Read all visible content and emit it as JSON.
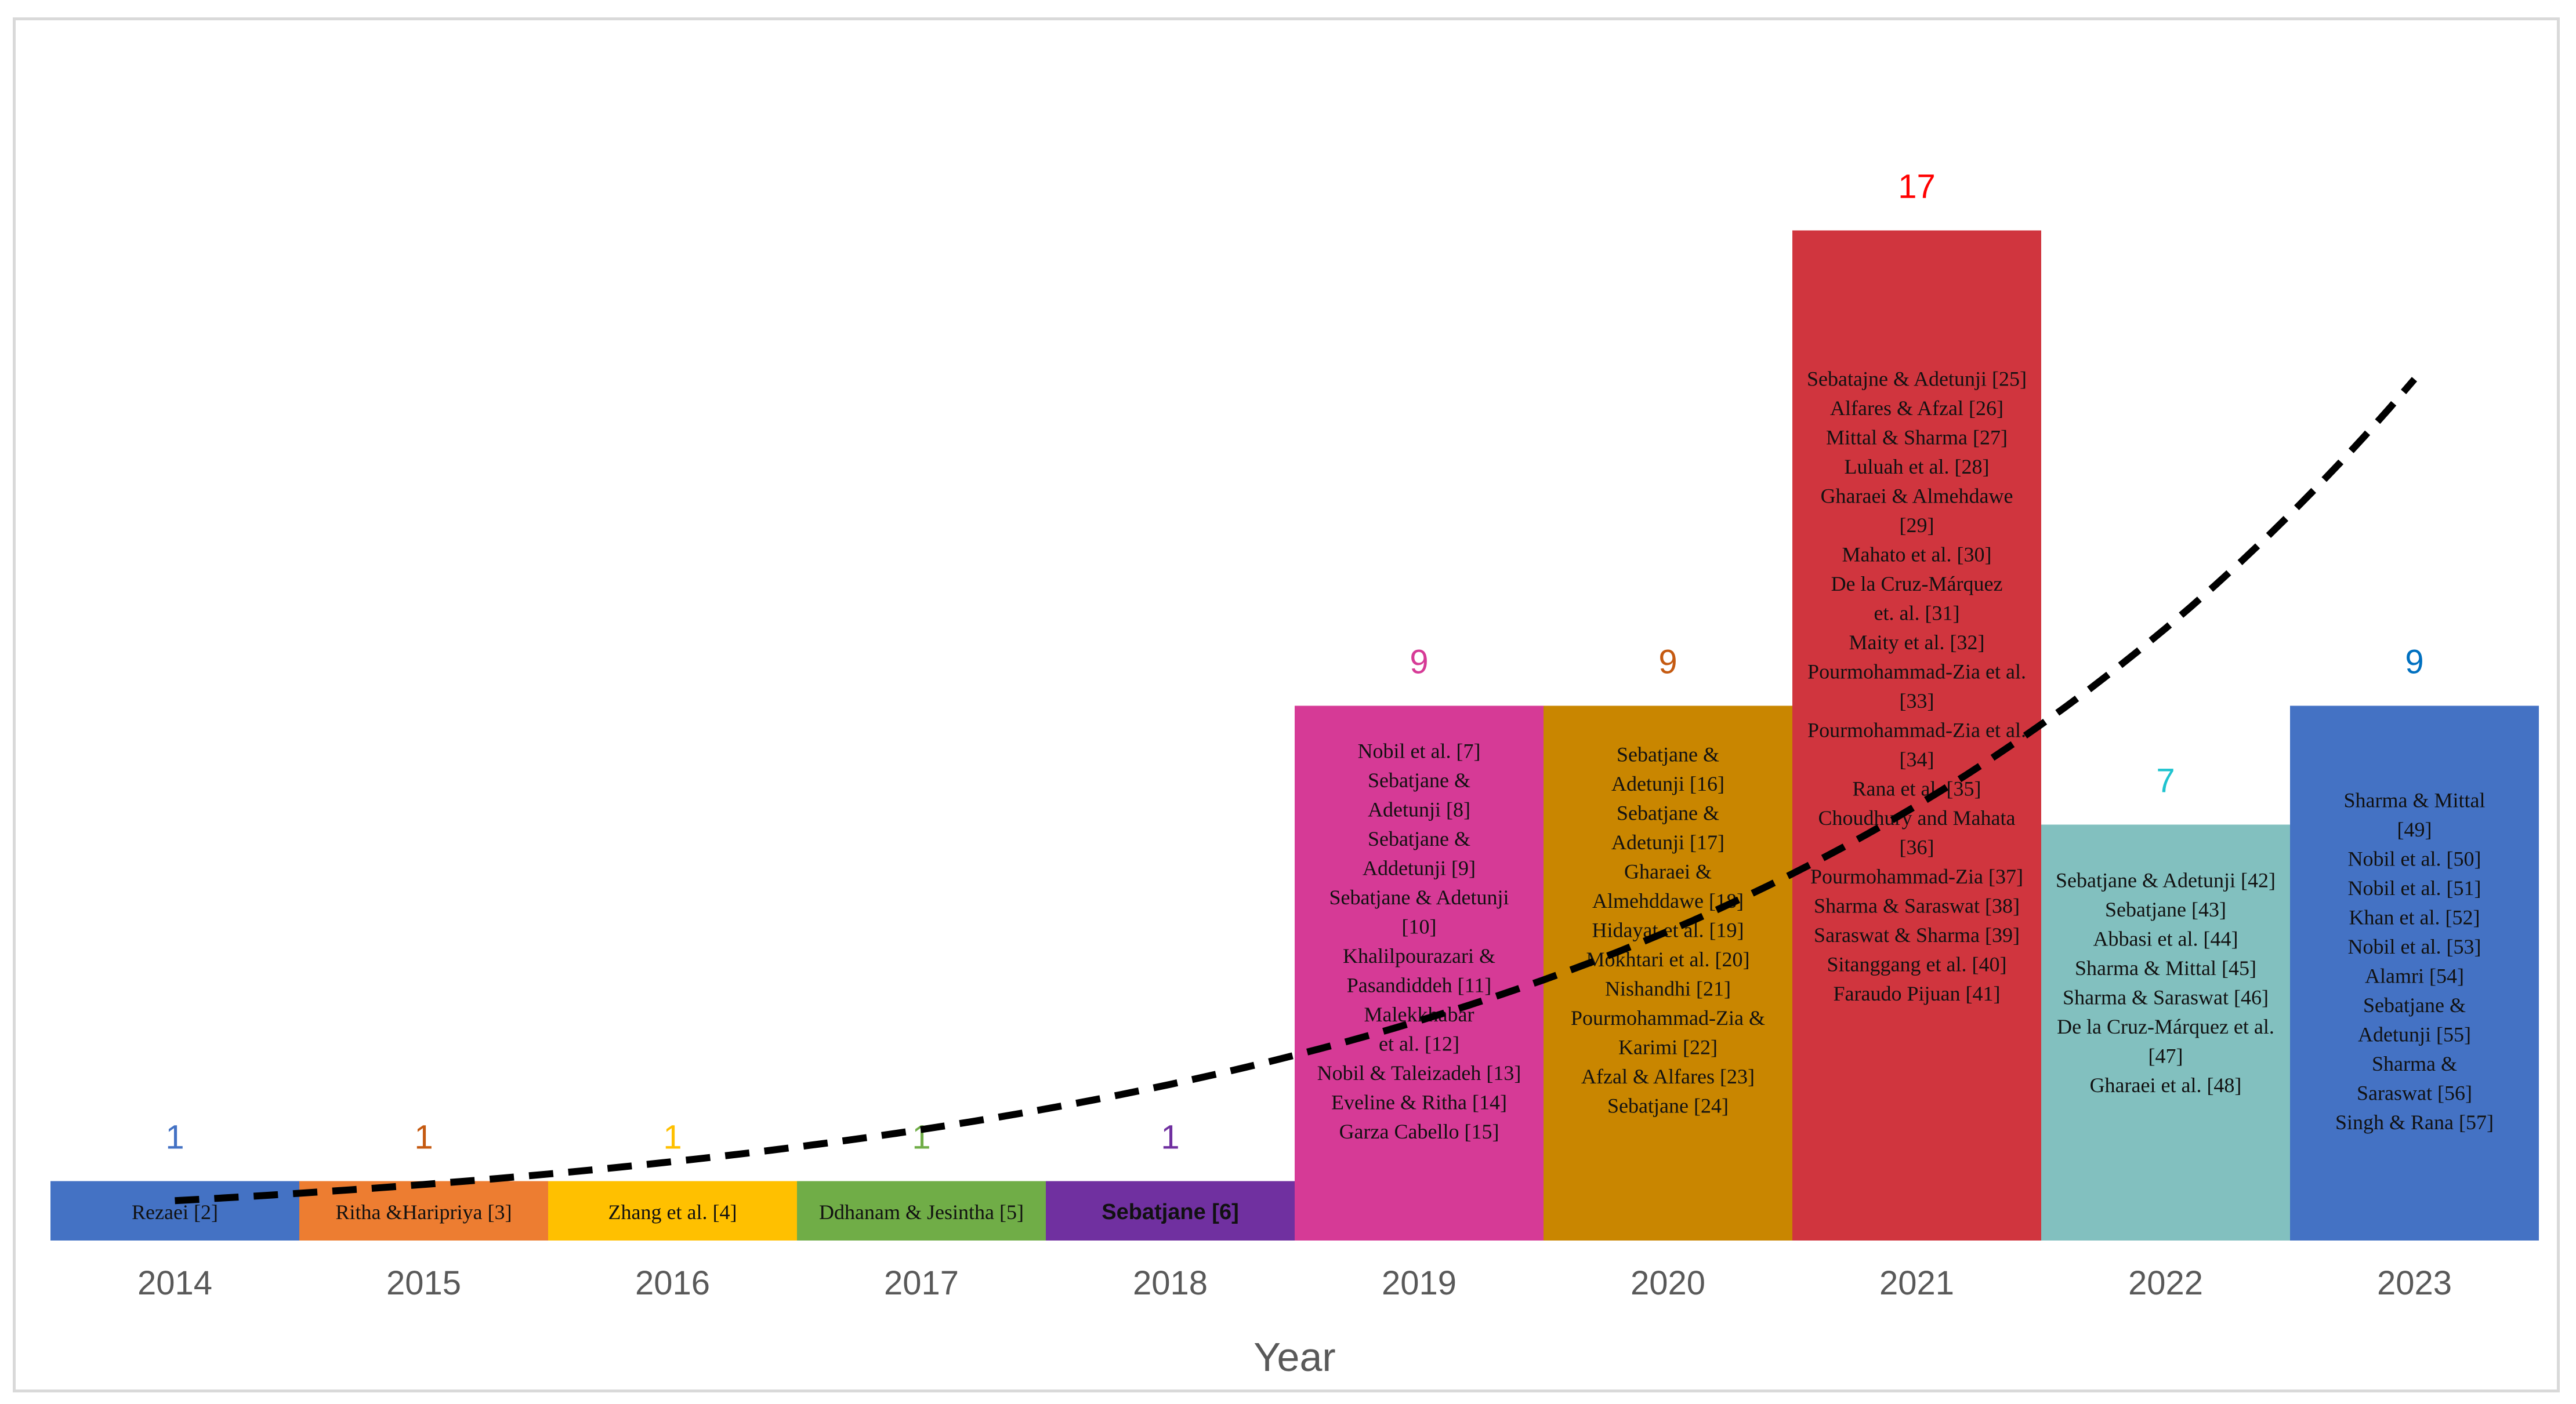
{
  "chart_data": {
    "type": "bar",
    "title": "",
    "xlabel": "Year",
    "ylabel": "",
    "ylim": [
      0,
      20
    ],
    "grid": false,
    "legend": "none",
    "trendline": {
      "type": "exponential",
      "style": "dashed",
      "color": "#000000"
    },
    "categories": [
      "2014",
      "2015",
      "2016",
      "2017",
      "2018",
      "2019",
      "2020",
      "2021",
      "2022",
      "2023"
    ],
    "values": [
      1,
      1,
      1,
      1,
      1,
      9,
      9,
      17,
      7,
      9
    ],
    "bar_colors": [
      "#4472c4",
      "#ed7d31",
      "#ffc000",
      "#70ad47",
      "#7030a0",
      "#d63a96",
      "#c98600",
      "#d0353e",
      "#82c0bf",
      "#4472c4"
    ],
    "label_colors": [
      "#4472c4",
      "#c55a11",
      "#ffc000",
      "#70ad47",
      "#7030a0",
      "#d63a96",
      "#c55a11",
      "#ff0000",
      "#1fc3cf",
      "#0070c0"
    ],
    "references": [
      [
        "Rezaei [2]"
      ],
      [
        "Ritha &Haripriya [3]"
      ],
      [
        "Zhang et al. [4]"
      ],
      [
        "Ddhanam & Jesintha [5]"
      ],
      [
        "Sebatjane [6]"
      ],
      [
        "Nobil et al. [7]",
        "Sebatjane &",
        "Adetunji [8]",
        "Sebatjane &",
        "Addetunji [9]",
        "Sebatjane & Adetunji",
        "[10]",
        "Khalilpourazari &",
        "Pasandiddeh [11]",
        "Malekkhabar",
        "et al. [12]",
        "Nobil & Taleizadeh [13]",
        "Eveline & Ritha [14]",
        "Garza Cabello [15]"
      ],
      [
        "Sebatjane &",
        "Adetunji [16]",
        "Sebatjane &",
        "Adetunji [17]",
        "Gharaei &",
        "Almehddawe [18]",
        "Hidayat et al. [19]",
        "Mokhtari et al. [20]",
        "Nishandhi [21]",
        "Pourmohammad-Zia &",
        "Karimi [22]",
        "Afzal & Alfares [23]",
        "Sebatjane [24]"
      ],
      [
        "Sebatajne & Adetunji [25]",
        "Alfares & Afzal [26]",
        "Mittal & Sharma [27]",
        "Luluah et al. [28]",
        "Gharaei & Almehdawe",
        "[29]",
        "Mahato et al. [30]",
        "De la Cruz-Márquez",
        "et. al. [31]",
        "Maity et al. [32]",
        "Pourmohammad-Zia et al.",
        "[33]",
        "Pourmohammad-Zia et al.",
        "[34]",
        "Rana et al. [35]",
        "Choudhury and Mahata",
        "[36]",
        "Pourmohammad-Zia [37]",
        "Sharma & Saraswat [38]",
        "Saraswat & Sharma [39]",
        "Sitanggang et al. [40]",
        "Faraudo Pijuan [41]"
      ],
      [
        "Sebatjane & Adetunji [42]",
        "Sebatjane [43]",
        "Abbasi et al. [44]",
        "Sharma & Mittal [45]",
        "Sharma & Saraswat [46]",
        "De la Cruz-Márquez et al.",
        "[47]",
        "Gharaei et al. [48]"
      ],
      [
        "Sharma & Mittal",
        "[49]",
        "Nobil et al. [50]",
        "Nobil et al. [51]",
        "Khan et al. [52]",
        "Nobil et al. [53]",
        "Alamri [54]",
        "Sebatjane &",
        "Adetunji [55]",
        "Sharma &",
        "Saraswat [56]",
        "Singh & Rana [57]"
      ]
    ]
  }
}
